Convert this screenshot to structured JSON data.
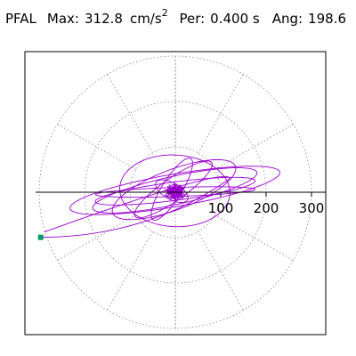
{
  "header": {
    "station": "PFAL",
    "max_label": "Max:",
    "max_value": "312.8",
    "max_unit_base": "cm/s",
    "max_unit_exp": "2",
    "period_label": "Per:",
    "period_value": "0.400 s",
    "angle_label": "Ang:",
    "angle_value": "198.6"
  },
  "chart_data": {
    "type": "scatter",
    "title": "",
    "xlabel": "",
    "ylabel": "",
    "radial_ticks": [
      "100",
      "200",
      "300"
    ],
    "radial_tick_values": [
      100,
      200,
      300
    ],
    "rings": [
      100,
      200,
      300
    ],
    "spoke_step_deg": 30,
    "grid": true,
    "line_color": "#9900cc",
    "marker_color": "#009966",
    "peak_point": {
      "x": -296.6,
      "y": -99.3
    },
    "trace_lobes": [
      {
        "semi_major": 240,
        "semi_minor": 30,
        "tilt_deg": 20
      },
      {
        "semi_major": 225,
        "semi_minor": 20,
        "tilt_deg": 12
      },
      {
        "semi_major": 300,
        "semi_minor": 35,
        "tilt_deg": 16
      },
      {
        "semi_major": 150,
        "semi_minor": 80,
        "tilt_deg": 25
      },
      {
        "semi_major": 160,
        "semi_minor": 20,
        "tilt_deg": 50
      },
      {
        "semi_major": 145,
        "semi_minor": 15,
        "tilt_deg": 70
      },
      {
        "semi_major": 60,
        "semi_minor": 15,
        "tilt_deg": 130
      },
      {
        "semi_major": 200,
        "semi_minor": 40,
        "tilt_deg": 35
      },
      {
        "semi_major": 220,
        "semi_minor": 10,
        "tilt_deg": 3
      }
    ],
    "core_radius": 25
  }
}
